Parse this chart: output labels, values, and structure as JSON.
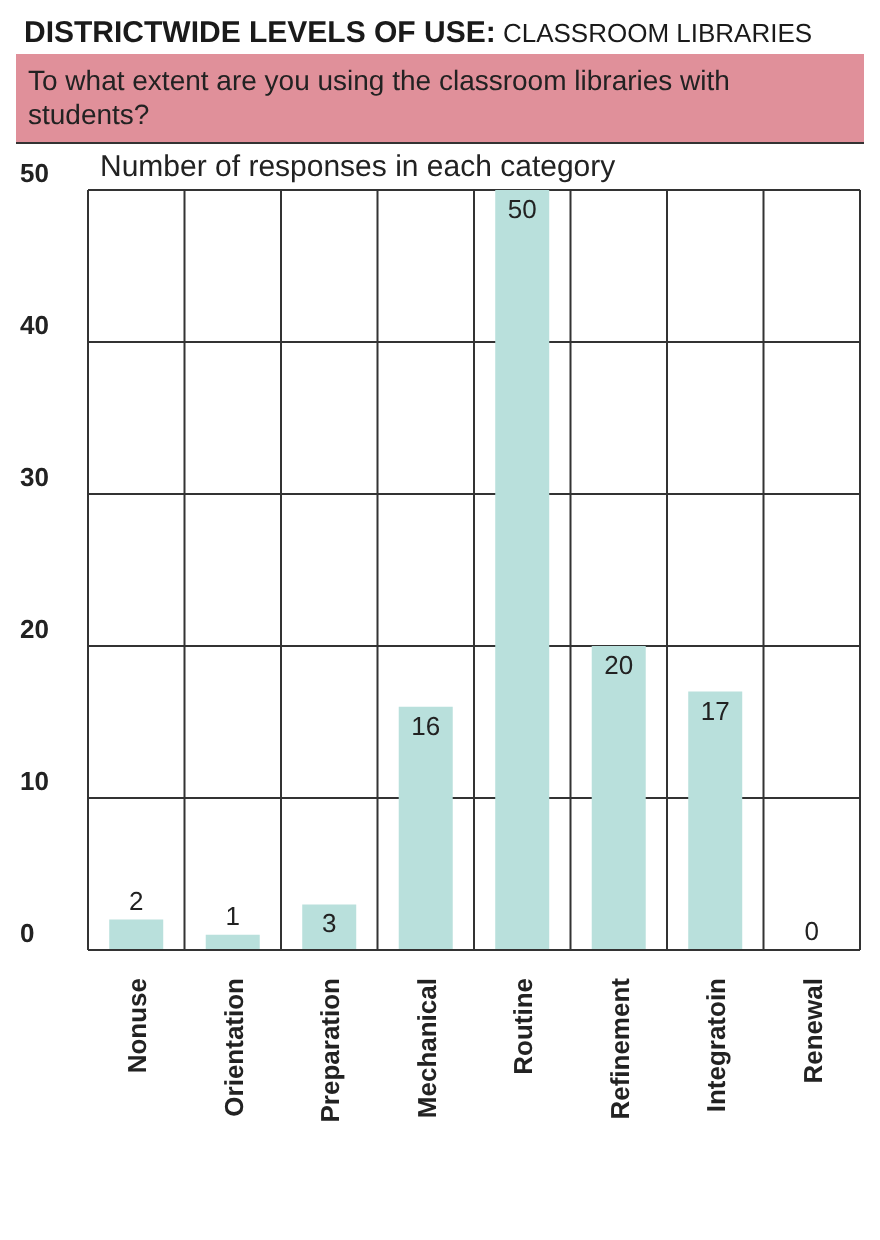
{
  "chart_data": {
    "type": "bar",
    "title": "DISTRICTWIDE LEVELS OF USE: CLASSROOM LIBRARIES",
    "subtitle": "To what extent are you using the classroom libraries with students?",
    "ylabel": "Number of responses in each category",
    "categories": [
      "Nonuse",
      "Orientation",
      "Preparation",
      "Mechanical",
      "Routine",
      "Refinement",
      "Integratoin",
      "Renewal"
    ],
    "values": [
      2,
      1,
      3,
      16,
      50,
      20,
      17,
      0
    ],
    "color": "#b9e0dc",
    "ylim": [
      0,
      50
    ],
    "yticks": [
      0,
      10,
      20,
      30,
      40,
      50
    ],
    "grid": true,
    "data_labels": true
  }
}
